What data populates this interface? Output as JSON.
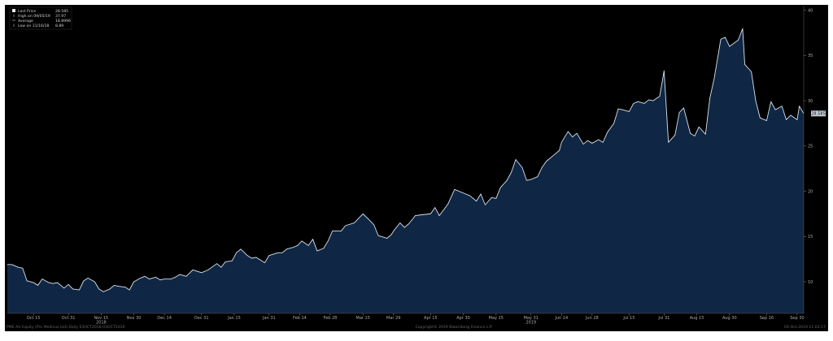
{
  "colors": {
    "background": "#000000",
    "area_fill": "#0f2744",
    "line": "#d9e2ec",
    "axis_text": "#aaaaaa",
    "footer_text": "#666666",
    "price_tag_bg": "#c8d0da",
    "price_tag_text": "#111111"
  },
  "legend": {
    "items": [
      {
        "icon": "square-filled-icon",
        "label": "Last Price",
        "value": "28.585"
      },
      {
        "icon": "high-marker-icon",
        "label": "High on 09/05/19",
        "value": "37.97"
      },
      {
        "icon": "average-line-icon",
        "label": "Average",
        "value": "18.8996"
      },
      {
        "icon": "low-marker-icon",
        "label": "Low on 11/16/18",
        "value": "8.89"
      }
    ]
  },
  "last_price_tag": "28.585",
  "footer": {
    "left": "PME AU Equity (Pro Medicus Ltd)  Daily 03OCT2018-03OCT2019",
    "center": "Copyright© 2019 Bloomberg Finance L.P.",
    "right": "03-Oct-2019 11:03:17"
  },
  "chart_data": {
    "type": "area",
    "title": "",
    "xlabel": "",
    "ylabel": "",
    "ylim": [
      6.5,
      40.5
    ],
    "yticks": [
      10,
      15,
      20,
      25,
      30,
      35,
      40
    ],
    "grid": false,
    "legend_position": "top-left",
    "xlim": [
      "2018-10-03",
      "2019-10-03"
    ],
    "x_ticks": [
      {
        "label": "Oct 15",
        "date": "2018-10-15"
      },
      {
        "label": "Oct 31",
        "date": "2018-10-31"
      },
      {
        "label": "Nov 15",
        "date": "2018-11-15"
      },
      {
        "label": "Nov 30",
        "date": "2018-11-30"
      },
      {
        "label": "Dec 14",
        "date": "2018-12-14"
      },
      {
        "label": "Dec 31",
        "date": "2018-12-31"
      },
      {
        "label": "Jan 15",
        "date": "2019-01-15"
      },
      {
        "label": "Jan 31",
        "date": "2019-01-31"
      },
      {
        "label": "Feb 14",
        "date": "2019-02-14"
      },
      {
        "label": "Feb 28",
        "date": "2019-02-28"
      },
      {
        "label": "Mar 15",
        "date": "2019-03-15"
      },
      {
        "label": "Mar 29",
        "date": "2019-03-29"
      },
      {
        "label": "Apr 15",
        "date": "2019-04-15"
      },
      {
        "label": "Apr 30",
        "date": "2019-04-30"
      },
      {
        "label": "May 15",
        "date": "2019-05-15"
      },
      {
        "label": "May 31",
        "date": "2019-05-31"
      },
      {
        "label": "Jun 14",
        "date": "2019-06-14"
      },
      {
        "label": "Jun 28",
        "date": "2019-06-28"
      },
      {
        "label": "Jul 15",
        "date": "2019-07-15"
      },
      {
        "label": "Jul 31",
        "date": "2019-07-31"
      },
      {
        "label": "Aug 15",
        "date": "2019-08-15"
      },
      {
        "label": "Aug 30",
        "date": "2019-08-30"
      },
      {
        "label": "Sep 16",
        "date": "2019-09-16"
      },
      {
        "label": "Sep 30",
        "date": "2019-09-30"
      }
    ],
    "year_labels": [
      {
        "label": "2018",
        "date": "2018-11-15"
      },
      {
        "label": "2019",
        "date": "2019-05-31"
      }
    ],
    "series": [
      {
        "name": "Last Price",
        "points": [
          [
            "2018-10-03",
            11.9
          ],
          [
            "2018-10-05",
            11.9
          ],
          [
            "2018-10-08",
            11.6
          ],
          [
            "2018-10-10",
            11.5
          ],
          [
            "2018-10-12",
            10.1
          ],
          [
            "2018-10-15",
            9.9
          ],
          [
            "2018-10-17",
            9.6
          ],
          [
            "2018-10-19",
            10.3
          ],
          [
            "2018-10-22",
            9.9
          ],
          [
            "2018-10-24",
            9.8
          ],
          [
            "2018-10-26",
            9.9
          ],
          [
            "2018-10-29",
            9.3
          ],
          [
            "2018-10-31",
            9.7
          ],
          [
            "2018-11-02",
            9.2
          ],
          [
            "2018-11-05",
            9.1
          ],
          [
            "2018-11-07",
            10.1
          ],
          [
            "2018-11-09",
            10.4
          ],
          [
            "2018-11-12",
            10.0
          ],
          [
            "2018-11-14",
            9.2
          ],
          [
            "2018-11-16",
            8.89
          ],
          [
            "2018-11-19",
            9.2
          ],
          [
            "2018-11-21",
            9.6
          ],
          [
            "2018-11-23",
            9.5
          ],
          [
            "2018-11-26",
            9.4
          ],
          [
            "2018-11-28",
            9.1
          ],
          [
            "2018-11-30",
            10.0
          ],
          [
            "2018-12-03",
            10.4
          ],
          [
            "2018-12-05",
            10.6
          ],
          [
            "2018-12-07",
            10.3
          ],
          [
            "2018-12-10",
            10.5
          ],
          [
            "2018-12-12",
            10.2
          ],
          [
            "2018-12-14",
            10.3
          ],
          [
            "2018-12-17",
            10.3
          ],
          [
            "2018-12-19",
            10.5
          ],
          [
            "2018-12-21",
            10.8
          ],
          [
            "2018-12-24",
            10.6
          ],
          [
            "2018-12-27",
            11.3
          ],
          [
            "2018-12-31",
            11.0
          ],
          [
            "2019-01-03",
            11.3
          ],
          [
            "2019-01-07",
            12.0
          ],
          [
            "2019-01-09",
            11.6
          ],
          [
            "2019-01-11",
            12.2
          ],
          [
            "2019-01-14",
            12.3
          ],
          [
            "2019-01-16",
            13.2
          ],
          [
            "2019-01-18",
            13.6
          ],
          [
            "2019-01-21",
            12.9
          ],
          [
            "2019-01-23",
            12.6
          ],
          [
            "2019-01-25",
            12.7
          ],
          [
            "2019-01-29",
            12.1
          ],
          [
            "2019-01-31",
            12.9
          ],
          [
            "2019-02-04",
            13.2
          ],
          [
            "2019-02-06",
            13.2
          ],
          [
            "2019-02-08",
            13.6
          ],
          [
            "2019-02-11",
            13.8
          ],
          [
            "2019-02-13",
            14.0
          ],
          [
            "2019-02-15",
            14.5
          ],
          [
            "2019-02-18",
            14.0
          ],
          [
            "2019-02-20",
            14.7
          ],
          [
            "2019-02-22",
            13.4
          ],
          [
            "2019-02-25",
            13.7
          ],
          [
            "2019-02-27",
            14.5
          ],
          [
            "2019-03-01",
            15.6
          ],
          [
            "2019-03-05",
            15.6
          ],
          [
            "2019-03-07",
            16.2
          ],
          [
            "2019-03-11",
            16.5
          ],
          [
            "2019-03-13",
            17.0
          ],
          [
            "2019-03-15",
            17.5
          ],
          [
            "2019-03-18",
            16.8
          ],
          [
            "2019-03-20",
            16.3
          ],
          [
            "2019-03-22",
            15.1
          ],
          [
            "2019-03-26",
            14.8
          ],
          [
            "2019-03-28",
            15.2
          ],
          [
            "2019-03-29",
            15.6
          ],
          [
            "2019-04-01",
            16.5
          ],
          [
            "2019-04-03",
            16.0
          ],
          [
            "2019-04-05",
            16.4
          ],
          [
            "2019-04-08",
            17.3
          ],
          [
            "2019-04-11",
            17.4
          ],
          [
            "2019-04-15",
            17.5
          ],
          [
            "2019-04-17",
            18.2
          ],
          [
            "2019-04-19",
            17.3
          ],
          [
            "2019-04-23",
            18.6
          ],
          [
            "2019-04-26",
            20.2
          ],
          [
            "2019-04-30",
            19.8
          ],
          [
            "2019-05-03",
            19.5
          ],
          [
            "2019-05-06",
            18.9
          ],
          [
            "2019-05-08",
            19.7
          ],
          [
            "2019-05-10",
            18.5
          ],
          [
            "2019-05-13",
            19.3
          ],
          [
            "2019-05-15",
            19.2
          ],
          [
            "2019-05-17",
            20.4
          ],
          [
            "2019-05-20",
            21.2
          ],
          [
            "2019-05-22",
            22.1
          ],
          [
            "2019-05-24",
            23.5
          ],
          [
            "2019-05-27",
            22.6
          ],
          [
            "2019-05-29",
            21.2
          ],
          [
            "2019-05-31",
            21.3
          ],
          [
            "2019-06-03",
            21.6
          ],
          [
            "2019-06-05",
            22.6
          ],
          [
            "2019-06-07",
            23.3
          ],
          [
            "2019-06-11",
            24.1
          ],
          [
            "2019-06-13",
            24.5
          ],
          [
            "2019-06-14",
            25.4
          ],
          [
            "2019-06-17",
            26.6
          ],
          [
            "2019-06-19",
            26.0
          ],
          [
            "2019-06-21",
            26.4
          ],
          [
            "2019-06-24",
            25.2
          ],
          [
            "2019-06-26",
            25.6
          ],
          [
            "2019-06-28",
            25.3
          ],
          [
            "2019-07-01",
            25.7
          ],
          [
            "2019-07-03",
            25.4
          ],
          [
            "2019-07-05",
            26.5
          ],
          [
            "2019-07-08",
            27.5
          ],
          [
            "2019-07-10",
            29.1
          ],
          [
            "2019-07-12",
            29.0
          ],
          [
            "2019-07-15",
            28.8
          ],
          [
            "2019-07-17",
            29.7
          ],
          [
            "2019-07-19",
            29.9
          ],
          [
            "2019-07-22",
            29.7
          ],
          [
            "2019-07-24",
            30.1
          ],
          [
            "2019-07-26",
            30.0
          ],
          [
            "2019-07-29",
            30.5
          ],
          [
            "2019-07-31",
            33.3
          ],
          [
            "2019-08-02",
            25.4
          ],
          [
            "2019-08-05",
            26.2
          ],
          [
            "2019-08-07",
            28.7
          ],
          [
            "2019-08-09",
            29.2
          ],
          [
            "2019-08-12",
            26.4
          ],
          [
            "2019-08-14",
            26.1
          ],
          [
            "2019-08-16",
            27.1
          ],
          [
            "2019-08-19",
            26.3
          ],
          [
            "2019-08-21",
            30.3
          ],
          [
            "2019-08-23",
            32.5
          ],
          [
            "2019-08-26",
            36.8
          ],
          [
            "2019-08-28",
            37.0
          ],
          [
            "2019-08-30",
            36.0
          ],
          [
            "2019-09-03",
            36.7
          ],
          [
            "2019-09-05",
            37.97
          ],
          [
            "2019-09-06",
            34.0
          ],
          [
            "2019-09-09",
            33.2
          ],
          [
            "2019-09-11",
            30.0
          ],
          [
            "2019-09-13",
            28.1
          ],
          [
            "2019-09-16",
            27.8
          ],
          [
            "2019-09-18",
            29.9
          ],
          [
            "2019-09-20",
            29.0
          ],
          [
            "2019-09-23",
            29.4
          ],
          [
            "2019-09-25",
            27.9
          ],
          [
            "2019-09-27",
            28.4
          ],
          [
            "2019-09-30",
            27.9
          ],
          [
            "2019-10-01",
            29.4
          ],
          [
            "2019-10-03",
            28.585
          ]
        ]
      }
    ]
  }
}
